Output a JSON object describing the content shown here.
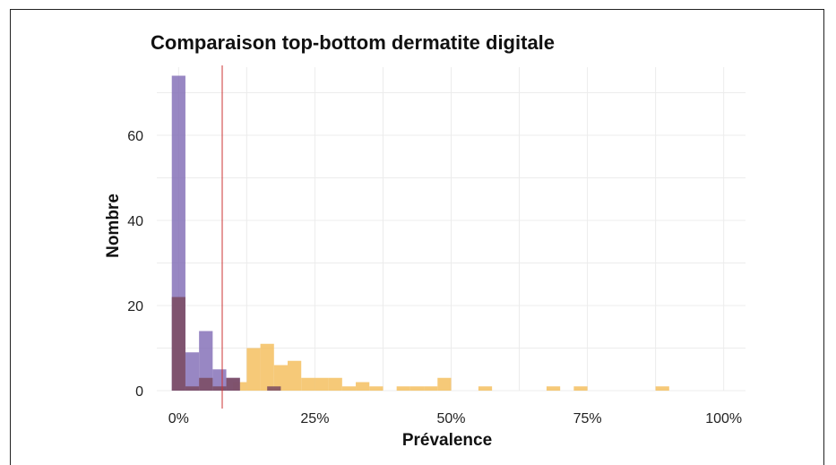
{
  "chart_data": {
    "type": "bar",
    "title": "Comparaison top-bottom dermatite digitale",
    "xlabel": "Prévalence",
    "ylabel": "Nombre",
    "xlim": [
      -0.04,
      1.04
    ],
    "ylim": [
      0,
      76
    ],
    "x_ticks": [
      0,
      0.25,
      0.5,
      0.75,
      1.0
    ],
    "x_tick_labels": [
      "0%",
      "25%",
      "50%",
      "75%",
      "100%"
    ],
    "y_ticks": [
      0,
      20,
      40,
      60
    ],
    "y_tick_labels": [
      "0",
      "20",
      "40",
      "60"
    ],
    "bin_width": 0.025,
    "grid": true,
    "reference_line": {
      "x": 0.08,
      "color": "#cc3333"
    },
    "series": [
      {
        "color": "#f5c060",
        "bins": [
          {
            "x": 0.1125,
            "count": 2
          },
          {
            "x": 0.1375,
            "count": 10
          },
          {
            "x": 0.1625,
            "count": 11
          },
          {
            "x": 0.1875,
            "count": 6
          },
          {
            "x": 0.2125,
            "count": 7
          },
          {
            "x": 0.2375,
            "count": 3
          },
          {
            "x": 0.2625,
            "count": 3
          },
          {
            "x": 0.2875,
            "count": 3
          },
          {
            "x": 0.3125,
            "count": 1
          },
          {
            "x": 0.3375,
            "count": 2
          },
          {
            "x": 0.3625,
            "count": 1
          },
          {
            "x": 0.4125,
            "count": 1
          },
          {
            "x": 0.4375,
            "count": 1
          },
          {
            "x": 0.4625,
            "count": 1
          },
          {
            "x": 0.4875,
            "count": 3
          },
          {
            "x": 0.5625,
            "count": 1
          },
          {
            "x": 0.6875,
            "count": 1
          },
          {
            "x": 0.7375,
            "count": 1
          },
          {
            "x": 0.8875,
            "count": 1
          }
        ]
      },
      {
        "color": "#8672b8",
        "bins": [
          {
            "x": 0.0,
            "count": 74
          },
          {
            "x": 0.025,
            "count": 9
          },
          {
            "x": 0.05,
            "count": 14
          },
          {
            "x": 0.075,
            "count": 5
          },
          {
            "x": 0.1,
            "count": 3
          }
        ]
      },
      {
        "color": "#7a4a60",
        "bins": [
          {
            "x": 0.0,
            "count": 22
          },
          {
            "x": 0.025,
            "count": 1
          },
          {
            "x": 0.05,
            "count": 3
          },
          {
            "x": 0.075,
            "count": 1
          },
          {
            "x": 0.1,
            "count": 3
          },
          {
            "x": 0.175,
            "count": 1
          }
        ]
      }
    ]
  }
}
